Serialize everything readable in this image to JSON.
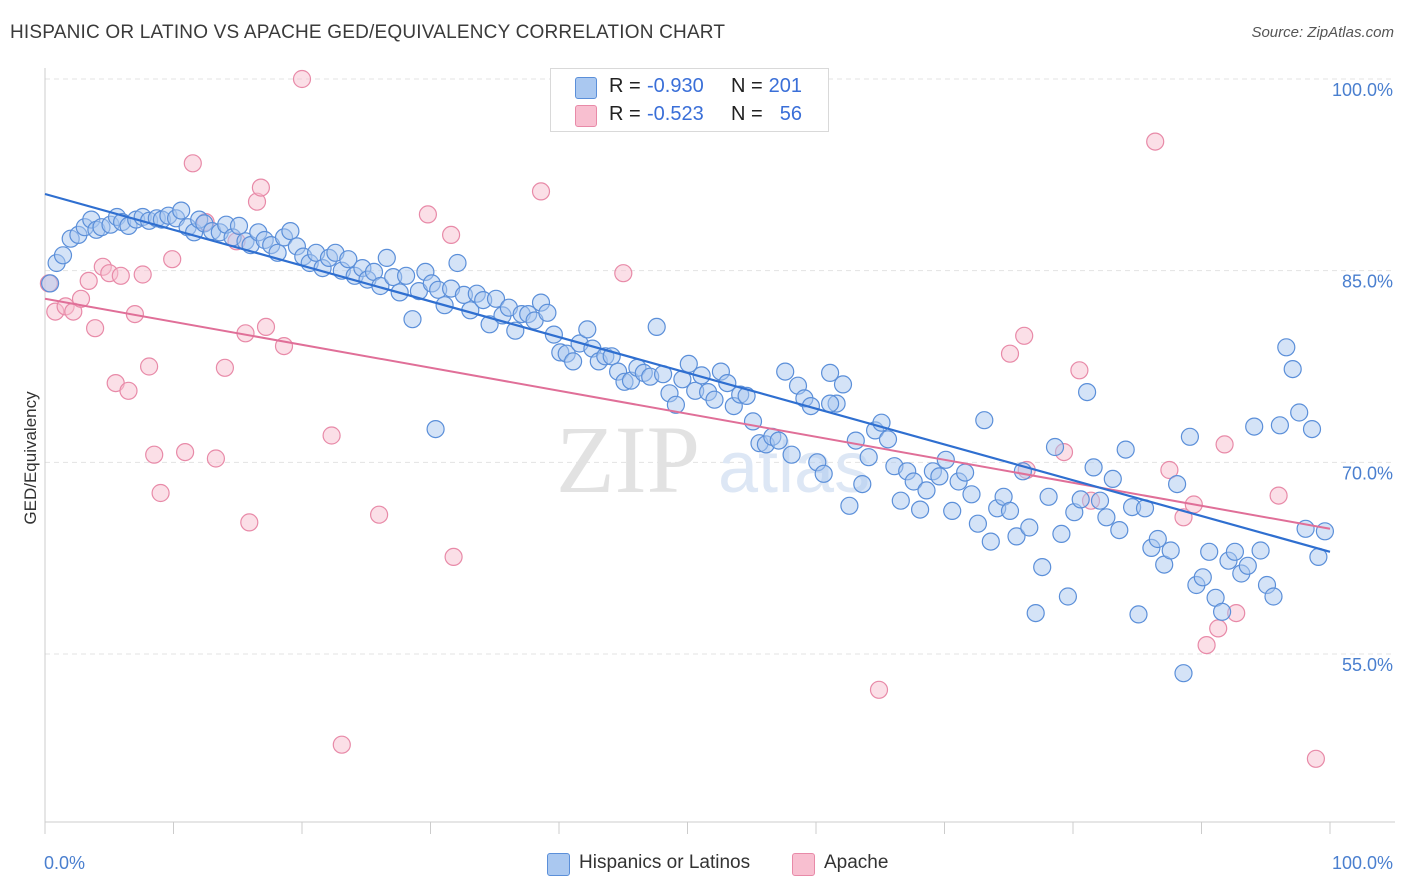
{
  "title": "HISPANIC OR LATINO VS APACHE GED/EQUIVALENCY CORRELATION CHART",
  "source": "Source: ZipAtlas.com",
  "watermark": {
    "zip": "ZIP",
    "atlas": "atlas"
  },
  "legend_top": [
    {
      "r_label": "R =",
      "r_value": "-0.930",
      "n_label": "N =",
      "n_value": "201"
    },
    {
      "r_label": "R =",
      "r_value": "-0.523",
      "n_label": "N =",
      "n_value": "56"
    }
  ],
  "legend_bottom": [
    {
      "label": "Hispanics or Latinos"
    },
    {
      "label": "Apache"
    }
  ],
  "colors": {
    "blue_fill": "#aac8f0",
    "blue_stroke": "#5b8fd9",
    "blue_line": "#2f6fd0",
    "pink_fill": "#f8bfd0",
    "pink_stroke": "#e88aa8",
    "pink_line": "#e06f98",
    "tick_text": "#4a7fcf",
    "grid": "#e3e3e3"
  },
  "chart_data": {
    "type": "scatter",
    "title": "HISPANIC OR LATINO VS APACHE GED/EQUIVALENCY CORRELATION CHART",
    "ylabel": "GED/Equivalency",
    "xlabel": "",
    "xlim": [
      0,
      100
    ],
    "ylim": [
      41.0,
      101.5
    ],
    "x_tick_labels": [
      "0.0%",
      "100.0%"
    ],
    "y_ticks": [
      55.0,
      70.0,
      85.0,
      100.0
    ],
    "y_tick_labels": [
      "55.0%",
      "70.0%",
      "85.0%",
      "100.0%"
    ],
    "grid": "horizontal dashed",
    "legend_position": "top-center",
    "series": [
      {
        "name": "Hispanics or Latinos",
        "r": -0.93,
        "n": 201,
        "trend": {
          "x": [
            0,
            100
          ],
          "y": [
            91.0,
            63.0
          ]
        },
        "points": [
          [
            0.4,
            84.0
          ],
          [
            0.9,
            85.6
          ],
          [
            1.4,
            86.2
          ],
          [
            2.0,
            87.5
          ],
          [
            2.6,
            87.8
          ],
          [
            3.1,
            88.4
          ],
          [
            3.6,
            89.0
          ],
          [
            4.0,
            88.2
          ],
          [
            4.4,
            88.4
          ],
          [
            5.1,
            88.6
          ],
          [
            5.6,
            89.2
          ],
          [
            6.0,
            88.8
          ],
          [
            6.5,
            88.5
          ],
          [
            7.1,
            89.0
          ],
          [
            7.6,
            89.2
          ],
          [
            8.1,
            88.9
          ],
          [
            8.7,
            89.1
          ],
          [
            9.1,
            89.0
          ],
          [
            9.6,
            89.3
          ],
          [
            10.2,
            89.1
          ],
          [
            10.6,
            89.7
          ],
          [
            11.1,
            88.4
          ],
          [
            11.6,
            88.0
          ],
          [
            12.0,
            89.0
          ],
          [
            12.4,
            88.7
          ],
          [
            13.0,
            88.1
          ],
          [
            13.6,
            88.0
          ],
          [
            14.1,
            88.6
          ],
          [
            14.6,
            87.6
          ],
          [
            15.1,
            88.5
          ],
          [
            15.6,
            87.3
          ],
          [
            16.0,
            87.0
          ],
          [
            16.6,
            88.0
          ],
          [
            17.1,
            87.4
          ],
          [
            17.6,
            87.0
          ],
          [
            18.1,
            86.4
          ],
          [
            18.6,
            87.6
          ],
          [
            19.1,
            88.1
          ],
          [
            19.6,
            86.9
          ],
          [
            20.1,
            86.1
          ],
          [
            20.6,
            85.6
          ],
          [
            21.1,
            86.4
          ],
          [
            21.6,
            85.2
          ],
          [
            22.1,
            86.0
          ],
          [
            22.6,
            86.4
          ],
          [
            23.1,
            85.0
          ],
          [
            23.6,
            85.9
          ],
          [
            24.1,
            84.6
          ],
          [
            24.7,
            85.2
          ],
          [
            25.1,
            84.3
          ],
          [
            25.6,
            84.9
          ],
          [
            26.1,
            83.8
          ],
          [
            26.6,
            86.0
          ],
          [
            27.1,
            84.5
          ],
          [
            27.6,
            83.3
          ],
          [
            28.1,
            84.6
          ],
          [
            28.6,
            81.2
          ],
          [
            29.1,
            83.4
          ],
          [
            29.6,
            84.9
          ],
          [
            30.1,
            84.0
          ],
          [
            30.6,
            83.5
          ],
          [
            31.1,
            82.3
          ],
          [
            31.6,
            83.6
          ],
          [
            32.1,
            85.6
          ],
          [
            32.6,
            83.1
          ],
          [
            33.1,
            81.9
          ],
          [
            33.6,
            83.2
          ],
          [
            34.1,
            82.7
          ],
          [
            34.6,
            80.8
          ],
          [
            35.1,
            82.8
          ],
          [
            35.6,
            81.5
          ],
          [
            36.1,
            82.1
          ],
          [
            36.6,
            80.3
          ],
          [
            37.1,
            81.6
          ],
          [
            37.6,
            81.6
          ],
          [
            38.1,
            81.1
          ],
          [
            38.6,
            82.5
          ],
          [
            39.1,
            81.7
          ],
          [
            39.6,
            80.0
          ],
          [
            40.1,
            78.6
          ],
          [
            40.6,
            78.5
          ],
          [
            41.1,
            77.9
          ],
          [
            41.6,
            79.3
          ],
          [
            42.2,
            80.4
          ],
          [
            42.6,
            78.9
          ],
          [
            43.1,
            77.9
          ],
          [
            43.6,
            78.3
          ],
          [
            44.1,
            78.3
          ],
          [
            44.6,
            77.1
          ],
          [
            45.1,
            76.3
          ],
          [
            45.6,
            76.4
          ],
          [
            46.1,
            77.4
          ],
          [
            46.6,
            77.0
          ],
          [
            47.1,
            76.7
          ],
          [
            47.6,
            80.6
          ],
          [
            48.1,
            76.9
          ],
          [
            48.6,
            75.4
          ],
          [
            49.1,
            74.5
          ],
          [
            49.6,
            76.5
          ],
          [
            50.1,
            77.7
          ],
          [
            50.6,
            75.6
          ],
          [
            51.1,
            76.8
          ],
          [
            51.6,
            75.5
          ],
          [
            52.1,
            74.9
          ],
          [
            52.6,
            77.1
          ],
          [
            53.1,
            76.2
          ],
          [
            53.6,
            74.4
          ],
          [
            54.1,
            75.3
          ],
          [
            54.6,
            75.2
          ],
          [
            55.1,
            73.2
          ],
          [
            55.6,
            71.5
          ],
          [
            56.1,
            71.4
          ],
          [
            56.6,
            72.0
          ],
          [
            57.1,
            71.7
          ],
          [
            57.6,
            77.1
          ],
          [
            58.1,
            70.6
          ],
          [
            58.6,
            76.0
          ],
          [
            59.1,
            75.0
          ],
          [
            59.6,
            74.4
          ],
          [
            60.1,
            70.0
          ],
          [
            60.6,
            69.1
          ],
          [
            61.1,
            77.0
          ],
          [
            61.6,
            74.6
          ],
          [
            62.1,
            76.1
          ],
          [
            62.6,
            66.6
          ],
          [
            63.1,
            71.7
          ],
          [
            63.6,
            68.3
          ],
          [
            64.1,
            70.4
          ],
          [
            64.6,
            72.5
          ],
          [
            65.1,
            73.1
          ],
          [
            65.6,
            71.8
          ],
          [
            66.1,
            69.7
          ],
          [
            66.6,
            67.0
          ],
          [
            67.1,
            69.3
          ],
          [
            67.6,
            68.5
          ],
          [
            68.1,
            66.3
          ],
          [
            68.6,
            67.8
          ],
          [
            69.1,
            69.3
          ],
          [
            69.6,
            68.9
          ],
          [
            70.1,
            70.2
          ],
          [
            70.6,
            66.2
          ],
          [
            71.1,
            68.5
          ],
          [
            71.6,
            69.2
          ],
          [
            72.1,
            67.5
          ],
          [
            72.6,
            65.2
          ],
          [
            73.1,
            73.3
          ],
          [
            73.6,
            63.8
          ],
          [
            74.1,
            66.4
          ],
          [
            74.6,
            67.3
          ],
          [
            75.1,
            66.2
          ],
          [
            75.6,
            64.2
          ],
          [
            76.1,
            69.3
          ],
          [
            76.6,
            64.9
          ],
          [
            77.1,
            58.2
          ],
          [
            77.6,
            61.8
          ],
          [
            78.1,
            67.3
          ],
          [
            78.6,
            71.2
          ],
          [
            79.1,
            64.4
          ],
          [
            79.6,
            59.5
          ],
          [
            80.1,
            66.1
          ],
          [
            80.6,
            67.1
          ],
          [
            81.1,
            75.5
          ],
          [
            81.6,
            69.6
          ],
          [
            82.1,
            67.0
          ],
          [
            82.6,
            65.7
          ],
          [
            83.1,
            68.7
          ],
          [
            83.6,
            64.7
          ],
          [
            84.1,
            71.0
          ],
          [
            84.6,
            66.5
          ],
          [
            85.1,
            58.1
          ],
          [
            85.6,
            66.4
          ],
          [
            86.1,
            63.3
          ],
          [
            86.6,
            64.0
          ],
          [
            87.1,
            62.0
          ],
          [
            87.6,
            63.1
          ],
          [
            88.1,
            68.3
          ],
          [
            88.6,
            53.5
          ],
          [
            89.1,
            72.0
          ],
          [
            89.6,
            60.4
          ],
          [
            90.1,
            61.0
          ],
          [
            90.6,
            63.0
          ],
          [
            91.1,
            59.4
          ],
          [
            91.6,
            58.3
          ],
          [
            92.1,
            62.3
          ],
          [
            92.6,
            63.0
          ],
          [
            93.1,
            61.3
          ],
          [
            93.6,
            61.9
          ],
          [
            94.1,
            72.8
          ],
          [
            94.6,
            63.1
          ],
          [
            95.1,
            60.4
          ],
          [
            95.6,
            59.5
          ],
          [
            96.1,
            72.9
          ],
          [
            96.6,
            79.0
          ],
          [
            97.1,
            77.3
          ],
          [
            97.6,
            73.9
          ],
          [
            98.1,
            64.8
          ],
          [
            98.6,
            72.6
          ],
          [
            99.1,
            62.6
          ],
          [
            99.6,
            64.6
          ],
          [
            30.4,
            72.6
          ],
          [
            61.1,
            74.6
          ]
        ]
      },
      {
        "name": "Apache",
        "r": -0.523,
        "n": 56,
        "trend": {
          "x": [
            0,
            100
          ],
          "y": [
            82.8,
            64.8
          ]
        },
        "points": [
          [
            0.3,
            84.0
          ],
          [
            0.8,
            81.8
          ],
          [
            1.6,
            82.2
          ],
          [
            2.2,
            81.8
          ],
          [
            2.8,
            82.8
          ],
          [
            3.4,
            84.2
          ],
          [
            3.9,
            80.5
          ],
          [
            4.5,
            85.3
          ],
          [
            5.0,
            84.8
          ],
          [
            5.5,
            76.2
          ],
          [
            5.9,
            84.6
          ],
          [
            6.5,
            75.6
          ],
          [
            7.0,
            81.6
          ],
          [
            7.6,
            84.7
          ],
          [
            8.1,
            77.5
          ],
          [
            8.5,
            70.6
          ],
          [
            9.0,
            67.6
          ],
          [
            9.9,
            85.9
          ],
          [
            10.9,
            70.8
          ],
          [
            11.5,
            93.4
          ],
          [
            12.5,
            88.8
          ],
          [
            13.3,
            70.3
          ],
          [
            14.0,
            77.4
          ],
          [
            14.9,
            87.3
          ],
          [
            15.6,
            80.1
          ],
          [
            15.9,
            65.3
          ],
          [
            16.5,
            90.4
          ],
          [
            16.8,
            91.5
          ],
          [
            17.2,
            80.6
          ],
          [
            18.6,
            79.1
          ],
          [
            20.0,
            100.0
          ],
          [
            22.3,
            72.1
          ],
          [
            23.1,
            47.9
          ],
          [
            26.0,
            65.9
          ],
          [
            29.8,
            89.4
          ],
          [
            31.6,
            87.8
          ],
          [
            31.8,
            62.6
          ],
          [
            38.6,
            91.2
          ],
          [
            45.0,
            84.8
          ],
          [
            64.9,
            52.2
          ],
          [
            75.1,
            78.5
          ],
          [
            76.2,
            79.9
          ],
          [
            76.4,
            69.4
          ],
          [
            79.3,
            70.8
          ],
          [
            80.5,
            77.2
          ],
          [
            81.4,
            67.0
          ],
          [
            86.4,
            95.1
          ],
          [
            87.5,
            69.4
          ],
          [
            88.6,
            65.7
          ],
          [
            89.4,
            66.7
          ],
          [
            90.4,
            55.7
          ],
          [
            91.3,
            57.0
          ],
          [
            91.8,
            71.4
          ],
          [
            92.7,
            58.2
          ],
          [
            96.0,
            67.4
          ],
          [
            98.9,
            46.8
          ]
        ]
      }
    ]
  }
}
